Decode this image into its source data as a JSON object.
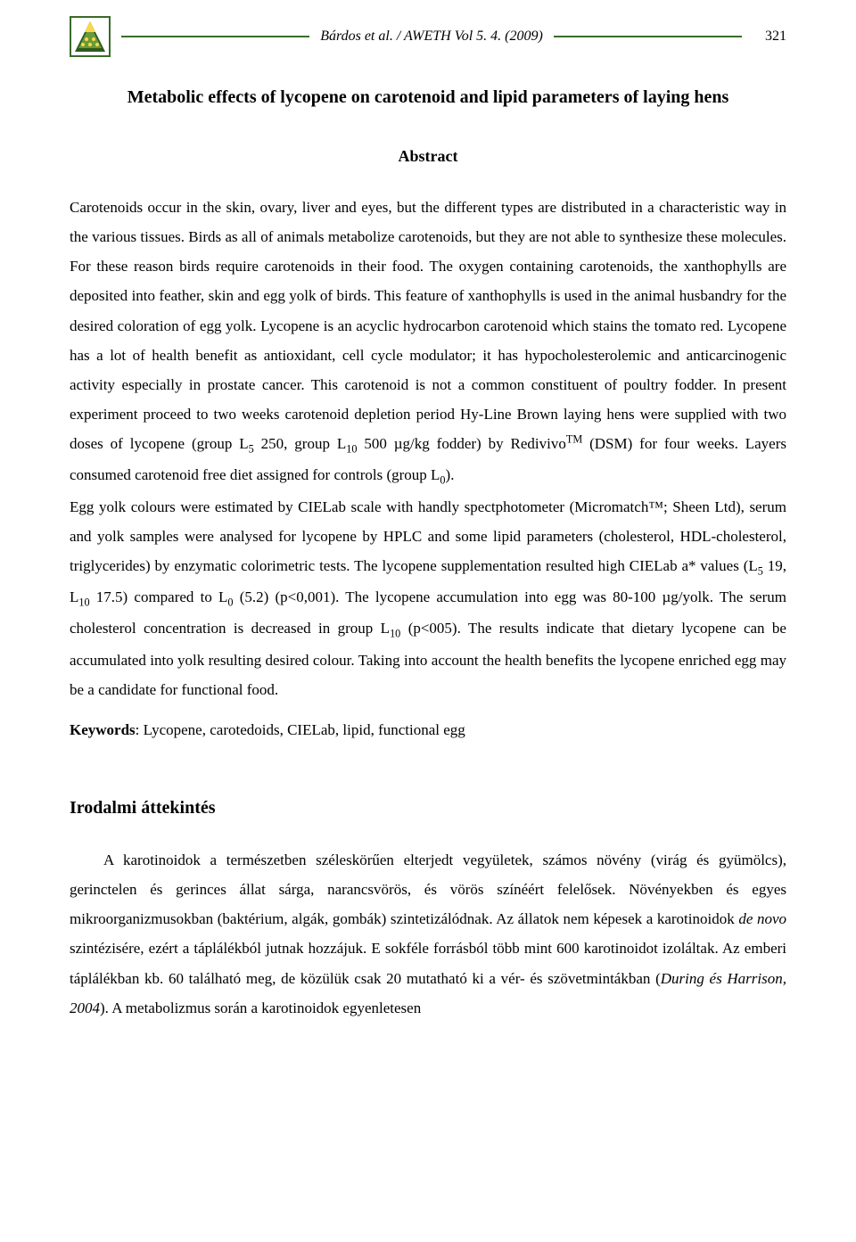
{
  "header": {
    "citation": "Bárdos et al. / AWETH Vol 5. 4. (2009)",
    "page_number": "321",
    "logo_colors": {
      "border": "#3a6a2a",
      "fill_top": "#f9d84a",
      "fill_mid": "#6a9a3a",
      "fill_bottom": "#2d5a1e"
    },
    "rule_color": "#3a6a2a"
  },
  "title": "Metabolic effects of lycopene on carotenoid and lipid parameters of laying hens",
  "abstract": {
    "heading": "Abstract",
    "body_html": "Carotenoids occur in the skin, ovary, liver and eyes, but the different types are distributed in a characteristic way in the various tissues. Birds as all of animals metabolize carotenoids, but they are not able to synthesize these molecules. For these reason birds require carotenoids in their food. The oxygen containing carotenoids, the xanthophylls are deposited into feather, skin and egg yolk of birds. This feature of xanthophylls is used in the animal husbandry for the desired coloration of egg yolk. Lycopene is an acyclic hydrocarbon carotenoid which stains the tomato red. Lycopene has a lot of health benefit as antioxidant, cell cycle modulator; it has hypocholesterolemic and anticarcinogenic activity especially in prostate cancer. This carotenoid is not a common constituent of poultry fodder. In present experiment proceed to two weeks carotenoid depletion period Hy-Line Brown laying hens were supplied with two doses of lycopene (group L<sub>5</sub> 250, group L<sub>10</sub> 500 µg/kg fodder) by Redivivo<sup>TM</sup> (DSM) for four weeks. Layers consumed carotenoid free diet assigned for controls (group L<sub>0</sub>).<br>Egg yolk colours were estimated by CIELab scale with handly spectphotometer (Micromatch™; Sheen Ltd), serum and yolk samples were analysed for lycopene by HPLC and some lipid parameters (cholesterol, HDL-cholesterol, triglycerides) by enzymatic colorimetric tests. The lycopene supplementation resulted high CIELab a* values (L<sub>5</sub> 19, L<sub>10</sub> 17.5) compared to L<sub>0</sub> (5.2) (p&lt;0,001). The lycopene accumulation into egg was 80-100 µg/yolk. The serum cholesterol concentration is decreased in group L<sub>10</sub> (p&lt;005). The results indicate that dietary lycopene can be accumulated into yolk resulting desired colour. Taking into account the health benefits the lycopene enriched egg may be a candidate for functional food.",
    "keywords_label": "Keywords",
    "keywords_text": ": Lycopene, carotedoids, CIELab, lipid, functional egg"
  },
  "section": {
    "heading": "Irodalmi áttekintés",
    "body_html": "A karotinoidok a természetben széleskörűen elterjedt vegyületek, számos növény (virág és gyümölcs), gerinctelen és gerinces állat sárga, narancsvörös, és vörös színéért felelősek. Növényekben és egyes mikroorganizmusokban (baktérium, algák, gombák) szintetizálódnak. Az állatok nem képesek a karotinoidok <span class=\"ital\">de novo</span> szintézisére, ezért a táplálékból jutnak hozzájuk. E sokféle forrásból több mint 600 karotinoidot izoláltak. Az emberi táplálékban kb. 60 található meg, de közülük csak 20 mutatható ki a vér- és szövetmintákban (<span class=\"ital\">During és Harrison, 2004</span>). A metabolizmus során a karotinoidok egyenletesen"
  }
}
